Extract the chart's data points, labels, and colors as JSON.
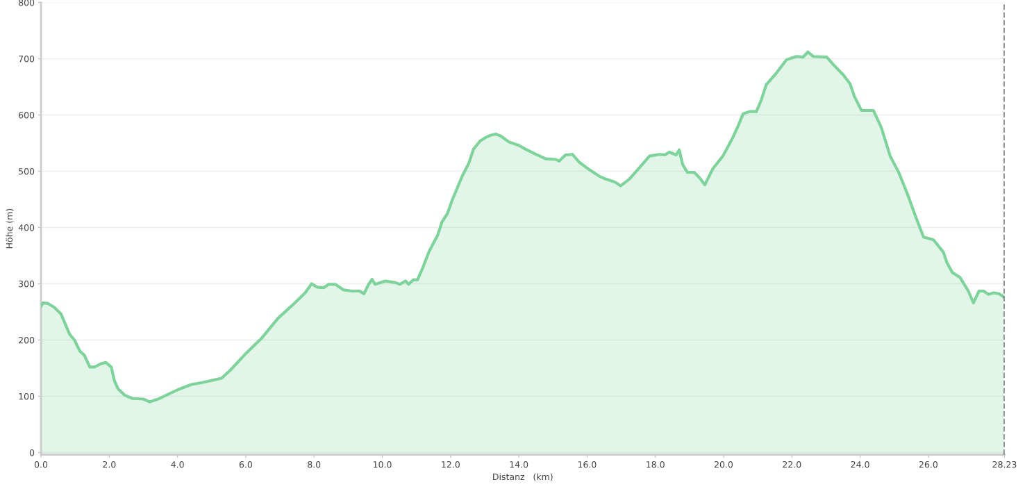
{
  "chart_data": {
    "type": "area",
    "xlabel": "Distanz   (km)",
    "ylabel": "Höhe (m)",
    "xlim": [
      0,
      28.23
    ],
    "ylim": [
      -4,
      800
    ],
    "xticks": [
      {
        "value": 0,
        "label": "0.0"
      },
      {
        "value": 2,
        "label": "2.0"
      },
      {
        "value": 4,
        "label": "4.0"
      },
      {
        "value": 6,
        "label": "6.0"
      },
      {
        "value": 8,
        "label": "8.0"
      },
      {
        "value": 10,
        "label": "10.0"
      },
      {
        "value": 12,
        "label": "12.0"
      },
      {
        "value": 14,
        "label": "14.0"
      },
      {
        "value": 16,
        "label": "16.0"
      },
      {
        "value": 18,
        "label": "18.0"
      },
      {
        "value": 20,
        "label": "20.0"
      },
      {
        "value": 22,
        "label": "22.0"
      },
      {
        "value": 24,
        "label": "24.0"
      },
      {
        "value": 26,
        "label": "26.0"
      },
      {
        "value": 28.23,
        "label": "28.23"
      }
    ],
    "yticks": [
      0,
      100,
      200,
      300,
      400,
      500,
      600,
      700,
      800
    ],
    "grid": "y",
    "legend": false,
    "ref_lines": [
      {
        "axis": "x",
        "value": 28.23,
        "label": null,
        "color": "#333333",
        "line_style": "dashed"
      }
    ],
    "series": [
      {
        "color": "#7dd39a",
        "x": [
          0,
          0.06,
          0.2,
          0.39,
          0.59,
          0.72,
          0.84,
          0.98,
          1.14,
          1.27,
          1.43,
          1.57,
          1.76,
          1.9,
          2.06,
          2.15,
          2.25,
          2.45,
          2.68,
          3.0,
          3.19,
          3.43,
          4.02,
          4.41,
          4.7,
          5.0,
          5.29,
          5.54,
          5.97,
          6.46,
          6.95,
          7.44,
          7.74,
          7.93,
          8.09,
          8.29,
          8.42,
          8.62,
          8.87,
          9.11,
          9.34,
          9.46,
          9.6,
          9.7,
          9.79,
          10.09,
          10.38,
          10.52,
          10.68,
          10.77,
          10.91,
          11.03,
          11.17,
          11.36,
          11.62,
          11.75,
          11.91,
          12.05,
          12.34,
          12.54,
          12.67,
          12.87,
          13.03,
          13.18,
          13.32,
          13.46,
          13.71,
          14.0,
          14.2,
          14.5,
          14.79,
          15.08,
          15.18,
          15.37,
          15.57,
          15.77,
          16.06,
          16.36,
          16.55,
          16.81,
          16.98,
          17.24,
          17.53,
          17.83,
          18.12,
          18.28,
          18.41,
          18.61,
          18.7,
          18.8,
          18.94,
          19.14,
          19.3,
          19.45,
          19.69,
          19.98,
          20.27,
          20.43,
          20.57,
          20.76,
          20.96,
          21.1,
          21.25,
          21.54,
          21.84,
          22.13,
          22.33,
          22.47,
          22.63,
          23.02,
          23.21,
          23.51,
          23.7,
          23.84,
          24.04,
          24.39,
          24.62,
          24.88,
          25.13,
          25.37,
          25.66,
          25.86,
          26.15,
          26.44,
          26.54,
          26.7,
          26.93,
          27.17,
          27.32,
          27.48,
          27.62,
          27.76,
          27.91,
          28.07,
          28.2
        ],
        "values": [
          260,
          266,
          265,
          258,
          246,
          227,
          210,
          200,
          180,
          173,
          152,
          152,
          158,
          160,
          152,
          128,
          114,
          102,
          96,
          95,
          90,
          95,
          112,
          121,
          124,
          128,
          132,
          146,
          174,
          203,
          239,
          266,
          284,
          300,
          294,
          293,
          299,
          299,
          289,
          287,
          287,
          282,
          299,
          308,
          299,
          305,
          302,
          299,
          305,
          299,
          307,
          307,
          326,
          356,
          386,
          410,
          425,
          449,
          491,
          515,
          539,
          554,
          560,
          564,
          566,
          563,
          552,
          546,
          539,
          530,
          522,
          521,
          518,
          529,
          530,
          516,
          503,
          491,
          486,
          481,
          474,
          486,
          506,
          527,
          530,
          529,
          534,
          529,
          538,
          512,
          498,
          498,
          488,
          476,
          505,
          527,
          560,
          581,
          602,
          606,
          606,
          626,
          654,
          674,
          698,
          704,
          703,
          712,
          704,
          703,
          690,
          671,
          656,
          632,
          608,
          608,
          578,
          527,
          498,
          462,
          414,
          383,
          378,
          356,
          338,
          320,
          311,
          287,
          266,
          287,
          287,
          281,
          284,
          282,
          277
        ]
      }
    ]
  }
}
